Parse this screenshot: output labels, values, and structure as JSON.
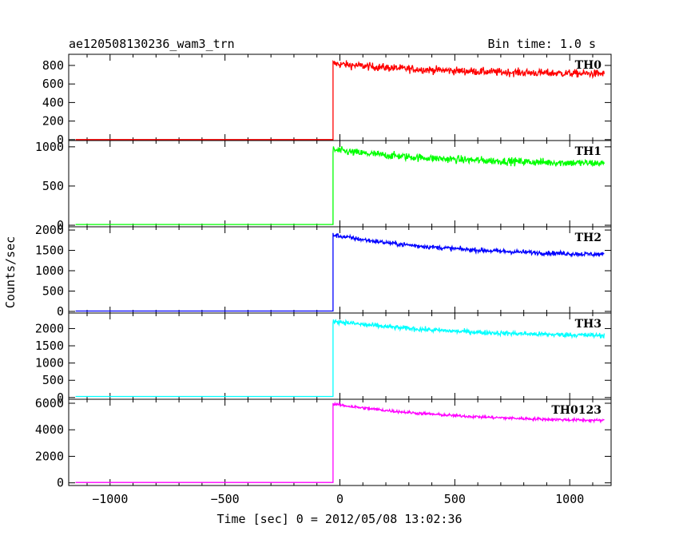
{
  "header": {
    "title": "ae120508130236_wam3_trn",
    "bin_time": "Bin time: 1.0 s"
  },
  "chart_data": {
    "type": "line",
    "xlabel": "Time [sec] 0 = 2012/05/08 13:02:36",
    "ylabel": "Counts/sec",
    "xlim": [
      -1180,
      1180
    ],
    "xticks": [
      -1000,
      -500,
      0,
      500,
      1000
    ],
    "xtick_labels": [
      "−1000",
      "−500",
      "0",
      "500",
      "1000"
    ],
    "panels": [
      {
        "name": "TH0",
        "color": "#ff0000",
        "ylim": [
          -10,
          920
        ],
        "yticks": [
          0,
          200,
          400,
          600,
          800
        ],
        "ytick_labels": [
          "0",
          "200",
          "400",
          "600",
          "800"
        ],
        "baseline": 0,
        "step_time": -30,
        "level_start": 820,
        "level_end": 710,
        "noise": 30
      },
      {
        "name": "TH1",
        "color": "#00ff00",
        "ylim": [
          -20,
          1080
        ],
        "yticks": [
          0,
          500,
          1000
        ],
        "ytick_labels": [
          "0",
          "500",
          "1000"
        ],
        "baseline": 10,
        "step_time": -30,
        "level_start": 960,
        "level_end": 790,
        "noise": 35
      },
      {
        "name": "TH2",
        "color": "#0000ff",
        "ylim": [
          -40,
          2080
        ],
        "yticks": [
          0,
          500,
          1000,
          1500,
          2000
        ],
        "ytick_labels": [
          "0",
          "500",
          "1000",
          "1500",
          "2000"
        ],
        "baseline": 10,
        "step_time": -30,
        "level_start": 1880,
        "level_end": 1400,
        "noise": 40
      },
      {
        "name": "TH3",
        "color": "#00ffff",
        "ylim": [
          -50,
          2450
        ],
        "yticks": [
          0,
          500,
          1000,
          1500,
          2000
        ],
        "ytick_labels": [
          "0",
          "500",
          "1000",
          "1500",
          "2000"
        ],
        "baseline": 30,
        "step_time": -30,
        "level_start": 2220,
        "level_end": 1800,
        "noise": 50
      },
      {
        "name": "TH0123",
        "color": "#ff00ff",
        "ylim": [
          -200,
          6300
        ],
        "yticks": [
          0,
          2000,
          4000,
          6000
        ],
        "ytick_labels": [
          "0",
          "2000",
          "4000",
          "6000"
        ],
        "baseline": 30,
        "step_time": -30,
        "level_start": 5950,
        "level_end": 4700,
        "noise": 80
      }
    ]
  }
}
